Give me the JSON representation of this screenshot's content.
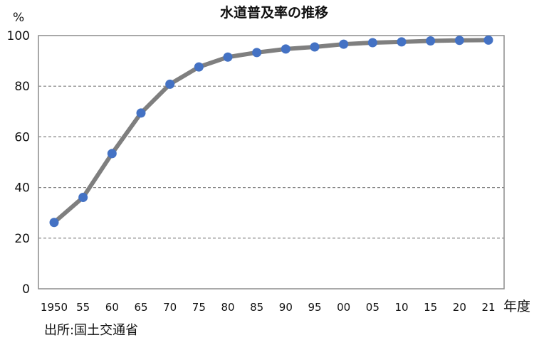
{
  "chart_data": {
    "type": "line",
    "title": "水道普及率の推移",
    "ylabel": "%",
    "xlabel": "年度",
    "source": "出所:国土交通省",
    "categories": [
      "1950",
      "55",
      "60",
      "65",
      "70",
      "75",
      "80",
      "85",
      "90",
      "95",
      "00",
      "05",
      "10",
      "15",
      "20",
      "21"
    ],
    "values": [
      26.2,
      36.1,
      53.4,
      69.4,
      80.8,
      87.6,
      91.5,
      93.3,
      94.7,
      95.5,
      96.6,
      97.2,
      97.5,
      97.9,
      98.1,
      98.2
    ],
    "ylim": [
      0,
      100
    ],
    "yticks": [
      0,
      20,
      40,
      60,
      80,
      100
    ],
    "grid": "horizontal dashed",
    "legend": "none",
    "colors": {
      "line": "#7f7f7f",
      "marker": "#4472c4",
      "grid": "#7f7f7f",
      "axis": "#7f7f7f"
    }
  }
}
